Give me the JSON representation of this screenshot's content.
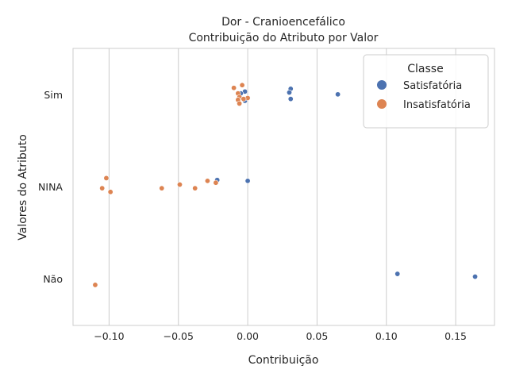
{
  "chart_data": {
    "type": "scatter",
    "title": "Dor - Cranioencefálico",
    "subtitle": "Contribuição do Atributo por Valor",
    "xlabel": "Contribuição",
    "ylabel": "Valores do Atributo",
    "xlim": [
      -0.126,
      0.178
    ],
    "xticks": [
      -0.1,
      -0.05,
      0.0,
      0.05,
      0.1,
      0.15
    ],
    "xtick_labels": [
      "−0.10",
      "−0.05",
      "0.00",
      "0.05",
      "0.10",
      "0.15"
    ],
    "categories": [
      "Sim",
      "NINA",
      "Não"
    ],
    "grid": "vertical",
    "legend": {
      "title": "Classe",
      "placement": "top-right"
    },
    "series": [
      {
        "name": "Satisfatória",
        "color": "#4c72b0",
        "points": [
          {
            "x": 0.031,
            "category": "Sim",
            "jitter": 0.07
          },
          {
            "x": 0.03,
            "category": "Sim",
            "jitter": 0.03
          },
          {
            "x": 0.065,
            "category": "Sim",
            "jitter": 0.01
          },
          {
            "x": 0.031,
            "category": "Sim",
            "jitter": -0.04
          },
          {
            "x": -0.002,
            "category": "Sim",
            "jitter": 0.04
          },
          {
            "x": -0.005,
            "category": "Sim",
            "jitter": 0.02
          },
          {
            "x": -0.002,
            "category": "Sim",
            "jitter": -0.06
          },
          {
            "x": -0.022,
            "category": "NINA",
            "jitter": 0.08
          },
          {
            "x": 0.0,
            "category": "NINA",
            "jitter": 0.07
          },
          {
            "x": 0.108,
            "category": "Não",
            "jitter": 0.06
          },
          {
            "x": 0.164,
            "category": "Não",
            "jitter": 0.03
          }
        ]
      },
      {
        "name": "Insatisfatória",
        "color": "#dd8452",
        "points": [
          {
            "x": -0.01,
            "category": "Sim",
            "jitter": 0.08
          },
          {
            "x": -0.004,
            "category": "Sim",
            "jitter": 0.11
          },
          {
            "x": -0.007,
            "category": "Sim",
            "jitter": 0.02
          },
          {
            "x": -0.006,
            "category": "Sim",
            "jitter": -0.02
          },
          {
            "x": 0.0,
            "category": "Sim",
            "jitter": -0.03
          },
          {
            "x": -0.007,
            "category": "Sim",
            "jitter": -0.05
          },
          {
            "x": -0.006,
            "category": "Sim",
            "jitter": -0.09
          },
          {
            "x": -0.003,
            "category": "Sim",
            "jitter": -0.04
          },
          {
            "x": -0.102,
            "category": "NINA",
            "jitter": 0.1
          },
          {
            "x": -0.105,
            "category": "NINA",
            "jitter": -0.01
          },
          {
            "x": -0.099,
            "category": "NINA",
            "jitter": -0.05
          },
          {
            "x": -0.062,
            "category": "NINA",
            "jitter": -0.01
          },
          {
            "x": -0.049,
            "category": "NINA",
            "jitter": 0.03
          },
          {
            "x": -0.038,
            "category": "NINA",
            "jitter": -0.01
          },
          {
            "x": -0.029,
            "category": "NINA",
            "jitter": 0.07
          },
          {
            "x": -0.023,
            "category": "NINA",
            "jitter": 0.05
          },
          {
            "x": -0.11,
            "category": "Não",
            "jitter": -0.06
          }
        ]
      }
    ]
  }
}
